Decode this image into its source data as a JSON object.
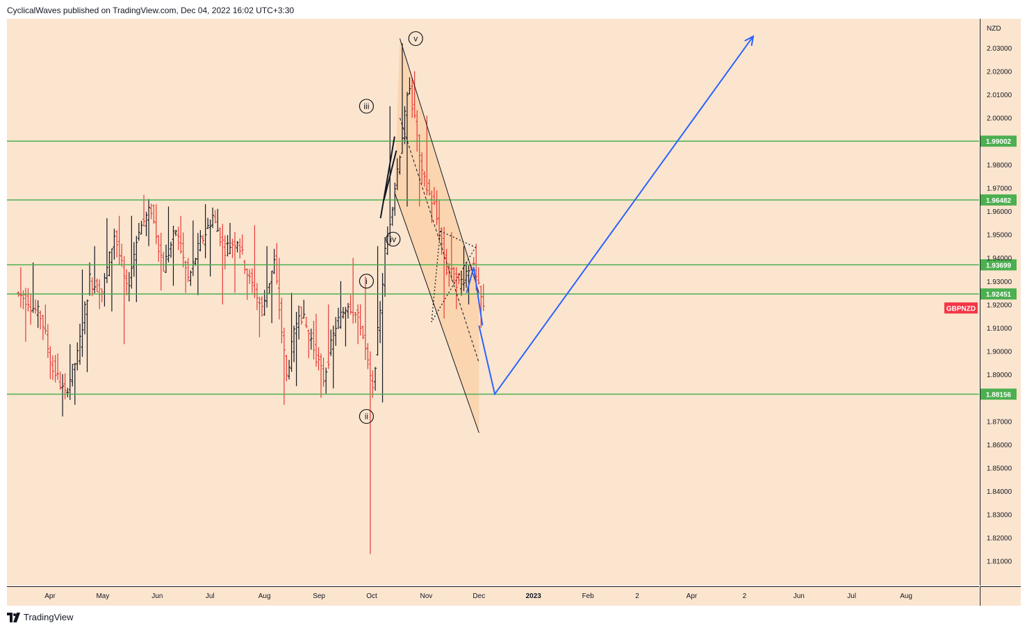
{
  "header": {
    "text": "CyclicalWaves published on TradingView.com, Dec 04, 2022 16:02 UTC+3:30"
  },
  "footer": {
    "brand": "TradingView",
    "logo_icon": "tradingview-logo-icon"
  },
  "colors": {
    "background": "#fbe5cf",
    "level_line": "#4caf50",
    "down_bar": "#e53935",
    "up_bar": "#131722",
    "projection": "#2962ff",
    "symbol_badge": "#f23645"
  },
  "chart_data": {
    "type": "bar",
    "symbol": "GBPNZD",
    "currency": "NZD",
    "ylim": [
      1.7995,
      2.0425
    ],
    "y_ticks": [
      1.81,
      1.82,
      1.83,
      1.84,
      1.85,
      1.86,
      1.87,
      1.89,
      1.9,
      1.91,
      1.92,
      1.93,
      1.94,
      1.95,
      1.96,
      1.97,
      1.98,
      2.0,
      2.01,
      2.02,
      2.03
    ],
    "x_ticks": [
      "Apr",
      "May",
      "Jun",
      "Jul",
      "Aug",
      "Sep",
      "Oct",
      "Nov",
      "Dec",
      "2023",
      "Feb",
      "2",
      "Apr",
      "2",
      "Jun",
      "Jul",
      "Aug"
    ],
    "horizontal_levels": [
      1.99002,
      1.96482,
      1.93699,
      1.92451,
      1.88156
    ],
    "horizontal_level_labels": [
      "1.99002",
      "1.96482",
      "1.93699",
      "1.92451",
      "1.88156"
    ],
    "wave_labels": [
      "i",
      "ii",
      "iii",
      "iv",
      "v"
    ],
    "wave_label_levels": [
      1.93,
      1.872,
      2.005,
      1.948,
      2.034
    ],
    "projection_path": [
      {
        "date": "2022-12-01",
        "price": 1.911
      },
      {
        "date": "2022-12-10",
        "price": 1.8816
      },
      {
        "date": "2023-05-06",
        "price": 2.035
      }
    ],
    "ohlc_bars": [
      {
        "date": "2022-03-14",
        "o": 1.925,
        "h": 1.936,
        "l": 1.904,
        "c": 1.922
      },
      {
        "date": "2022-03-21",
        "o": 1.921,
        "h": 1.938,
        "l": 1.91,
        "c": 1.915
      },
      {
        "date": "2022-03-28",
        "o": 1.916,
        "h": 1.92,
        "l": 1.888,
        "c": 1.892
      },
      {
        "date": "2022-04-04",
        "o": 1.893,
        "h": 1.899,
        "l": 1.872,
        "c": 1.881
      },
      {
        "date": "2022-04-11",
        "o": 1.882,
        "h": 1.903,
        "l": 1.877,
        "c": 1.898
      },
      {
        "date": "2022-04-18",
        "o": 1.898,
        "h": 1.935,
        "l": 1.891,
        "c": 1.931
      },
      {
        "date": "2022-04-25",
        "o": 1.93,
        "h": 1.945,
        "l": 1.918,
        "c": 1.926
      },
      {
        "date": "2022-05-02",
        "o": 1.925,
        "h": 1.957,
        "l": 1.917,
        "c": 1.95
      },
      {
        "date": "2022-05-09",
        "o": 1.951,
        "h": 1.958,
        "l": 1.903,
        "c": 1.926
      },
      {
        "date": "2022-05-16",
        "o": 1.925,
        "h": 1.958,
        "l": 1.921,
        "c": 1.953
      },
      {
        "date": "2022-05-23",
        "o": 1.952,
        "h": 1.967,
        "l": 1.945,
        "c": 1.961
      },
      {
        "date": "2022-05-30",
        "o": 1.96,
        "h": 1.963,
        "l": 1.926,
        "c": 1.936
      },
      {
        "date": "2022-06-06",
        "o": 1.936,
        "h": 1.962,
        "l": 1.928,
        "c": 1.952
      },
      {
        "date": "2022-06-13",
        "o": 1.952,
        "h": 1.958,
        "l": 1.925,
        "c": 1.931
      },
      {
        "date": "2022-06-20",
        "o": 1.93,
        "h": 1.956,
        "l": 1.924,
        "c": 1.947
      },
      {
        "date": "2022-06-27",
        "o": 1.946,
        "h": 1.963,
        "l": 1.932,
        "c": 1.958
      },
      {
        "date": "2022-07-04",
        "o": 1.957,
        "h": 1.961,
        "l": 1.92,
        "c": 1.944
      },
      {
        "date": "2022-07-11",
        "o": 1.944,
        "h": 1.955,
        "l": 1.925,
        "c": 1.948
      },
      {
        "date": "2022-07-18",
        "o": 1.948,
        "h": 1.95,
        "l": 1.922,
        "c": 1.93
      },
      {
        "date": "2022-07-25",
        "o": 1.931,
        "h": 1.954,
        "l": 1.906,
        "c": 1.918
      },
      {
        "date": "2022-08-01",
        "o": 1.918,
        "h": 1.945,
        "l": 1.912,
        "c": 1.938
      },
      {
        "date": "2022-08-08",
        "o": 1.938,
        "h": 1.94,
        "l": 1.877,
        "c": 1.889
      },
      {
        "date": "2022-08-15",
        "o": 1.89,
        "h": 1.925,
        "l": 1.885,
        "c": 1.918
      },
      {
        "date": "2022-08-22",
        "o": 1.918,
        "h": 1.922,
        "l": 1.897,
        "c": 1.905
      },
      {
        "date": "2022-08-29",
        "o": 1.905,
        "h": 1.916,
        "l": 1.88,
        "c": 1.888
      },
      {
        "date": "2022-09-05",
        "o": 1.888,
        "h": 1.92,
        "l": 1.884,
        "c": 1.911
      },
      {
        "date": "2022-09-12",
        "o": 1.911,
        "h": 1.93,
        "l": 1.902,
        "c": 1.921
      },
      {
        "date": "2022-09-19",
        "o": 1.921,
        "h": 1.94,
        "l": 1.903,
        "c": 1.912
      },
      {
        "date": "2022-09-26",
        "o": 1.912,
        "h": 1.932,
        "l": 1.813,
        "c": 1.882
      },
      {
        "date": "2022-10-03",
        "o": 1.884,
        "h": 1.945,
        "l": 1.878,
        "c": 1.942
      },
      {
        "date": "2022-10-10",
        "o": 1.942,
        "h": 2.005,
        "l": 1.958,
        "c": 1.978
      },
      {
        "date": "2022-10-17",
        "o": 1.978,
        "h": 2.032,
        "l": 1.962,
        "c": 2.015
      },
      {
        "date": "2022-10-24",
        "o": 2.014,
        "h": 2.02,
        "l": 1.962,
        "c": 1.975
      },
      {
        "date": "2022-10-31",
        "o": 1.975,
        "h": 2.001,
        "l": 1.955,
        "c": 1.962
      },
      {
        "date": "2022-11-07",
        "o": 1.962,
        "h": 1.965,
        "l": 1.914,
        "c": 1.935
      },
      {
        "date": "2022-11-14",
        "o": 1.935,
        "h": 1.951,
        "l": 1.918,
        "c": 1.929
      },
      {
        "date": "2022-11-21",
        "o": 1.928,
        "h": 1.945,
        "l": 1.92,
        "c": 1.938
      },
      {
        "date": "2022-11-28",
        "o": 1.939,
        "h": 1.946,
        "l": 1.91,
        "c": 1.918
      }
    ]
  }
}
